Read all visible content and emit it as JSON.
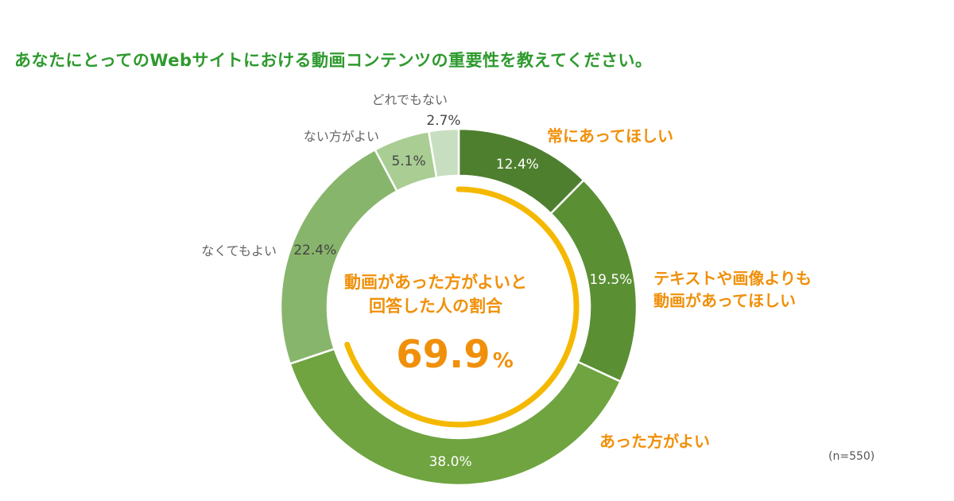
{
  "title": "あなたにとってのWebサイトにおける動画コンテンツの重要性を教えてください。",
  "sample_size": "(n=550)",
  "center": {
    "line1": "動画があった方がよいと",
    "line2": "回答した人の割合",
    "value": "69.9",
    "unit": "%"
  },
  "colors": {
    "title": "#2e9a2e",
    "orange": "#f0900a",
    "arc": "#f5b800"
  },
  "chart_data": {
    "type": "donut",
    "unit": "%",
    "slices": [
      {
        "label": "常にあってほしい",
        "value": 12.4,
        "value_label": "12.4%",
        "color": "#4e7f2f",
        "label_color": "#f0900a"
      },
      {
        "label": "テキストや画像よりも動画があってほしい",
        "label_lines": [
          "テキストや画像よりも",
          "動画があってほしい"
        ],
        "value": 19.5,
        "value_label": "19.5%",
        "color": "#5b8f34",
        "label_color": "#f0900a"
      },
      {
        "label": "あった方がよい",
        "value": 38.0,
        "value_label": "38.0%",
        "color": "#6fa440",
        "label_color": "#f0900a"
      },
      {
        "label": "なくてもよい",
        "value": 22.4,
        "value_label": "22.4%",
        "color": "#88b56c",
        "label_color": "#666666"
      },
      {
        "label": "ない方がよい",
        "value": 5.1,
        "value_label": "5.1%",
        "color": "#a9cd93",
        "label_color": "#666666"
      },
      {
        "label": "どれでもない",
        "value": 2.7,
        "value_label": "2.7%",
        "color": "#c8dec0",
        "label_color": "#666666"
      }
    ],
    "highlight_arc": {
      "value": 69.9,
      "slices": [
        "常にあってほしい",
        "テキストや画像よりも動画があってほしい",
        "あった方がよい"
      ]
    }
  }
}
